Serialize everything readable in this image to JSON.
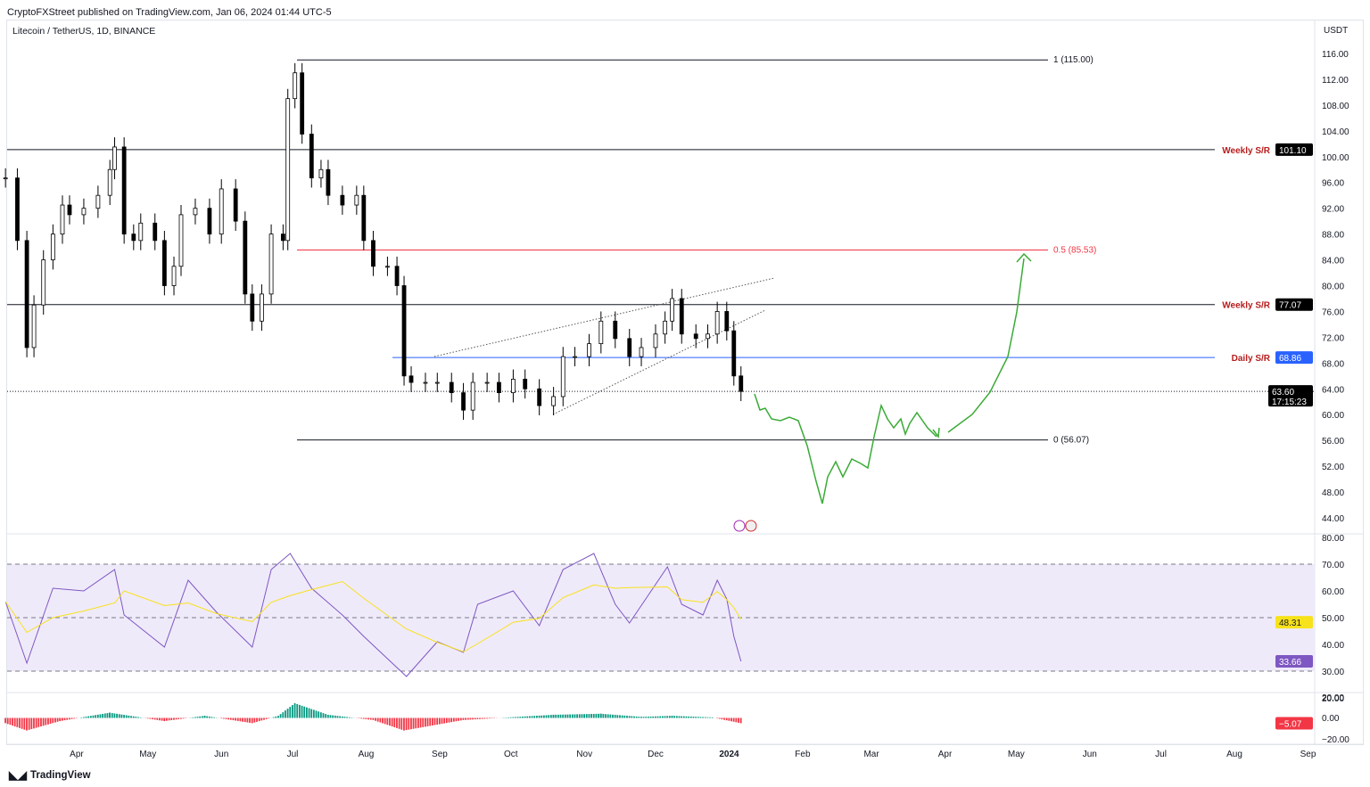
{
  "header": {
    "publisher": "CryptoFXStreet published on TradingView.com, Jan 06, 2024 01:44 UTC-5",
    "symbol": "Litecoin / TetherUS, 1D, BINANCE",
    "currency": "USDT"
  },
  "footer": {
    "brand": "TradingView"
  },
  "colors": {
    "fib_red": "#f23645",
    "sr_label": "#b71c1c",
    "daily_sr": "#2962ff",
    "projection": "#3aab36",
    "rsi": "#7e57c2",
    "rsi_ma": "#f7e21b",
    "rsi_band": "#efeafa",
    "macd_up": "#089981",
    "macd_down": "#f23645"
  },
  "chart_data": {
    "type": "candlestick",
    "title": "Litecoin / TetherUS, 1D, BINANCE",
    "ylim": [
      44,
      116
    ],
    "y_ticks": [
      "44.00",
      "48.00",
      "52.00",
      "56.00",
      "60.00",
      "64.00",
      "68.00",
      "72.00",
      "76.00",
      "80.00",
      "84.00",
      "88.00",
      "92.00",
      "96.00",
      "100.00",
      "104.00",
      "108.00",
      "112.00",
      "116.00"
    ],
    "x_ticks": [
      {
        "label": "Apr",
        "date": "2023-04-01"
      },
      {
        "label": "May",
        "date": "2023-05-01"
      },
      {
        "label": "Jun",
        "date": "2023-06-01"
      },
      {
        "label": "Jul",
        "date": "2023-07-01"
      },
      {
        "label": "Aug",
        "date": "2023-08-01"
      },
      {
        "label": "Sep",
        "date": "2023-09-01"
      },
      {
        "label": "Oct",
        "date": "2023-10-01"
      },
      {
        "label": "Nov",
        "date": "2023-11-01"
      },
      {
        "label": "Dec",
        "date": "2023-12-01"
      },
      {
        "label": "2024",
        "date": "2024-01-01"
      },
      {
        "label": "Feb",
        "date": "2024-02-01"
      },
      {
        "label": "Mar",
        "date": "2024-03-01"
      },
      {
        "label": "Apr",
        "date": "2024-04-01"
      },
      {
        "label": "May",
        "date": "2024-05-01"
      },
      {
        "label": "Jun",
        "date": "2024-06-01"
      },
      {
        "label": "Jul",
        "date": "2024-07-01"
      },
      {
        "label": "Aug",
        "date": "2024-08-01"
      },
      {
        "label": "Sep",
        "date": "2024-09-01"
      }
    ],
    "closes": [
      [
        "2023-03-02",
        96.7
      ],
      [
        "2023-03-07",
        87
      ],
      [
        "2023-03-11",
        70.4
      ],
      [
        "2023-03-14",
        77
      ],
      [
        "2023-03-18",
        84
      ],
      [
        "2023-03-22",
        88
      ],
      [
        "2023-03-26",
        92.5
      ],
      [
        "2023-03-29",
        91
      ],
      [
        "2023-04-04",
        92
      ],
      [
        "2023-04-10",
        94
      ],
      [
        "2023-04-15",
        98
      ],
      [
        "2023-04-17",
        101.5
      ],
      [
        "2023-04-21",
        88
      ],
      [
        "2023-04-25",
        87
      ],
      [
        "2023-04-28",
        89.7
      ],
      [
        "2023-05-04",
        87
      ],
      [
        "2023-05-08",
        80
      ],
      [
        "2023-05-12",
        83
      ],
      [
        "2023-05-15",
        91
      ],
      [
        "2023-05-21",
        92
      ],
      [
        "2023-05-27",
        88
      ],
      [
        "2023-06-01",
        95
      ],
      [
        "2023-06-07",
        90
      ],
      [
        "2023-06-11",
        78.7
      ],
      [
        "2023-06-14",
        74.5
      ],
      [
        "2023-06-18",
        78.7
      ],
      [
        "2023-06-22",
        88
      ],
      [
        "2023-06-27",
        87
      ],
      [
        "2023-06-29",
        109
      ],
      [
        "2023-07-02",
        113
      ],
      [
        "2023-07-05",
        103.5
      ],
      [
        "2023-07-09",
        96.7
      ],
      [
        "2023-07-13",
        98
      ],
      [
        "2023-07-16",
        94
      ],
      [
        "2023-07-22",
        92.5
      ],
      [
        "2023-07-28",
        94
      ],
      [
        "2023-07-31",
        87
      ],
      [
        "2023-08-04",
        83
      ],
      [
        "2023-08-10",
        83
      ],
      [
        "2023-08-14",
        80
      ],
      [
        "2023-08-17",
        66
      ],
      [
        "2023-08-20",
        65
      ],
      [
        "2023-08-26",
        65
      ],
      [
        "2023-08-31",
        65
      ],
      [
        "2023-09-06",
        63.4
      ],
      [
        "2023-09-11",
        60.7
      ],
      [
        "2023-09-15",
        65
      ],
      [
        "2023-09-21",
        65
      ],
      [
        "2023-09-26",
        63.4
      ],
      [
        "2023-10-02",
        65.5
      ],
      [
        "2023-10-07",
        64
      ],
      [
        "2023-10-13",
        61.4
      ],
      [
        "2023-10-19",
        62.8
      ],
      [
        "2023-10-23",
        69
      ],
      [
        "2023-10-28",
        69
      ],
      [
        "2023-11-03",
        71
      ],
      [
        "2023-11-08",
        74.5
      ],
      [
        "2023-11-14",
        71.8
      ],
      [
        "2023-11-20",
        69
      ],
      [
        "2023-11-25",
        70.4
      ],
      [
        "2023-12-01",
        72.5
      ],
      [
        "2023-12-05",
        74.5
      ],
      [
        "2023-12-08",
        78
      ],
      [
        "2023-12-12",
        72.5
      ],
      [
        "2023-12-18",
        71.8
      ],
      [
        "2023-12-23",
        72.5
      ],
      [
        "2023-12-27",
        76
      ],
      [
        "2023-12-31",
        73
      ],
      [
        "2024-01-03",
        66
      ],
      [
        "2024-01-06",
        63.6
      ]
    ],
    "last_price": {
      "value": "63.60",
      "countdown": "17:15:23"
    },
    "levels": [
      {
        "label": "1 (115.00)",
        "value": 115.0,
        "kind": "fib"
      },
      {
        "label": "0.5 (85.53)",
        "value": 85.53,
        "kind": "fib-mid"
      },
      {
        "label": "0 (56.07)",
        "value": 56.07,
        "kind": "fib"
      },
      {
        "label": "Weekly S/R",
        "value": 101.1,
        "badge": "101.10",
        "kind": "weekly"
      },
      {
        "label": "Weekly S/R",
        "value": 77.07,
        "badge": "77.07",
        "kind": "weekly"
      },
      {
        "label": "Daily S/R",
        "value": 68.86,
        "badge": "68.86",
        "kind": "daily"
      }
    ],
    "rsi": {
      "ylim": [
        10,
        80
      ],
      "band": [
        30,
        70
      ],
      "mid": 50,
      "y_ticks": [
        "20.00",
        "30.00",
        "40.00",
        "50.00",
        "60.00",
        "70.00",
        "80.00"
      ],
      "values": [
        [
          "2023-03-02",
          56
        ],
        [
          "2023-03-11",
          33
        ],
        [
          "2023-03-22",
          61
        ],
        [
          "2023-04-04",
          60
        ],
        [
          "2023-04-17",
          68
        ],
        [
          "2023-04-21",
          51
        ],
        [
          "2023-05-08",
          39
        ],
        [
          "2023-05-18",
          64
        ],
        [
          "2023-05-30",
          52
        ],
        [
          "2023-06-14",
          39
        ],
        [
          "2023-06-22",
          68
        ],
        [
          "2023-06-30",
          74
        ],
        [
          "2023-07-09",
          61
        ],
        [
          "2023-07-22",
          51
        ],
        [
          "2023-07-31",
          43
        ],
        [
          "2023-08-18",
          28
        ],
        [
          "2023-08-31",
          41
        ],
        [
          "2023-09-11",
          37
        ],
        [
          "2023-09-17",
          55
        ],
        [
          "2023-10-02",
          60
        ],
        [
          "2023-10-13",
          47
        ],
        [
          "2023-10-23",
          68
        ],
        [
          "2023-11-05",
          74
        ],
        [
          "2023-11-14",
          55
        ],
        [
          "2023-11-20",
          48
        ],
        [
          "2023-12-06",
          69
        ],
        [
          "2023-12-12",
          55
        ],
        [
          "2023-12-21",
          51
        ],
        [
          "2023-12-27",
          64
        ],
        [
          "2023-12-31",
          57
        ],
        [
          "2024-01-03",
          43
        ],
        [
          "2024-01-06",
          33.66
        ]
      ],
      "last": "33.66",
      "ma_last": "48.31"
    },
    "macd_hist": {
      "y_ticks": [
        "20.00",
        "0.00",
        "−20.00"
      ],
      "values": [
        [
          "2023-03-02",
          -5
        ],
        [
          "2023-03-11",
          -12
        ],
        [
          "2023-03-25",
          -3
        ],
        [
          "2023-04-15",
          5
        ],
        [
          "2023-05-08",
          -3
        ],
        [
          "2023-05-25",
          2
        ],
        [
          "2023-06-14",
          -5
        ],
        [
          "2023-06-25",
          2
        ],
        [
          "2023-07-02",
          14
        ],
        [
          "2023-07-16",
          3
        ],
        [
          "2023-08-04",
          -2
        ],
        [
          "2023-08-17",
          -12
        ],
        [
          "2023-09-11",
          -2
        ],
        [
          "2023-10-19",
          3
        ],
        [
          "2023-11-08",
          4
        ],
        [
          "2023-11-25",
          1
        ],
        [
          "2023-12-08",
          2
        ],
        [
          "2023-12-25",
          0.5
        ],
        [
          "2024-01-06",
          -5.07
        ]
      ],
      "last": "−5.07"
    }
  }
}
